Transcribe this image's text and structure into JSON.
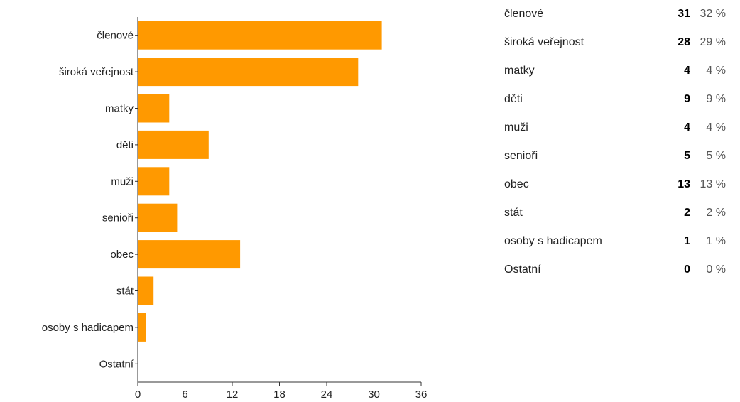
{
  "chart_data": {
    "type": "bar",
    "orientation": "horizontal",
    "categories": [
      "členové",
      "široká veřejnost",
      "matky",
      "děti",
      "muži",
      "senioři",
      "obec",
      "stát",
      "osoby s hadicapem",
      "Ostatní"
    ],
    "values": [
      31,
      28,
      4,
      9,
      4,
      5,
      13,
      2,
      1,
      0
    ],
    "xlim": [
      0,
      36
    ],
    "xticks": [
      0,
      6,
      12,
      18,
      24,
      30,
      36
    ],
    "title": "",
    "xlabel": "",
    "ylabel": "",
    "grid": false,
    "legend": "none",
    "bar_color": "#FF9900"
  },
  "summary": {
    "rows": [
      {
        "label": "členové",
        "count": "31",
        "percent": "32 %"
      },
      {
        "label": "široká veřejnost",
        "count": "28",
        "percent": "29 %"
      },
      {
        "label": "matky",
        "count": "4",
        "percent": "4 %"
      },
      {
        "label": "děti",
        "count": "9",
        "percent": "9 %"
      },
      {
        "label": "muži",
        "count": "4",
        "percent": "4 %"
      },
      {
        "label": "senioři",
        "count": "5",
        "percent": "5 %"
      },
      {
        "label": "obec",
        "count": "13",
        "percent": "13 %"
      },
      {
        "label": "stát",
        "count": "2",
        "percent": "2 %"
      },
      {
        "label": "osoby s hadicapem",
        "count": "1",
        "percent": "1 %"
      },
      {
        "label": "Ostatní",
        "count": "0",
        "percent": "0 %"
      }
    ]
  }
}
